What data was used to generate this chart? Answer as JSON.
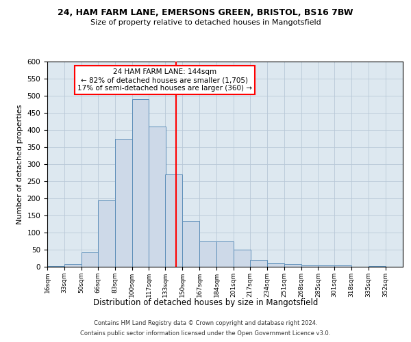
{
  "title1": "24, HAM FARM LANE, EMERSONS GREEN, BRISTOL, BS16 7BW",
  "title2": "Size of property relative to detached houses in Mangotsfield",
  "xlabel": "Distribution of detached houses by size in Mangotsfield",
  "ylabel": "Number of detached properties",
  "bar_color": "#cdd9e8",
  "bar_edge_color": "#5b8db8",
  "grid_color": "#b8c8d8",
  "background_color": "#dde8f0",
  "vline_x": 144,
  "vline_color": "red",
  "annotation_text": "24 HAM FARM LANE: 144sqm\n← 82% of detached houses are smaller (1,705)\n17% of semi-detached houses are larger (360) →",
  "annotation_box_color": "white",
  "annotation_box_edge": "red",
  "footnote1": "Contains HM Land Registry data © Crown copyright and database right 2024.",
  "footnote2": "Contains public sector information licensed under the Open Government Licence v3.0.",
  "bin_edges": [
    16,
    33,
    50,
    66,
    83,
    100,
    117,
    133,
    150,
    167,
    184,
    201,
    217,
    234,
    251,
    268,
    285,
    301,
    318,
    335,
    352
  ],
  "bin_labels": [
    "16sqm",
    "33sqm",
    "50sqm",
    "66sqm",
    "83sqm",
    "100sqm",
    "117sqm",
    "133sqm",
    "150sqm",
    "167sqm",
    "184sqm",
    "201sqm",
    "217sqm",
    "234sqm",
    "251sqm",
    "268sqm",
    "285sqm",
    "301sqm",
    "318sqm",
    "335sqm",
    "352sqm"
  ],
  "bar_heights": [
    3,
    8,
    42,
    195,
    375,
    490,
    410,
    270,
    135,
    75,
    75,
    50,
    20,
    10,
    8,
    5,
    5,
    4,
    1,
    2,
    0
  ],
  "ylim": [
    0,
    600
  ],
  "yticks": [
    0,
    50,
    100,
    150,
    200,
    250,
    300,
    350,
    400,
    450,
    500,
    550,
    600
  ]
}
